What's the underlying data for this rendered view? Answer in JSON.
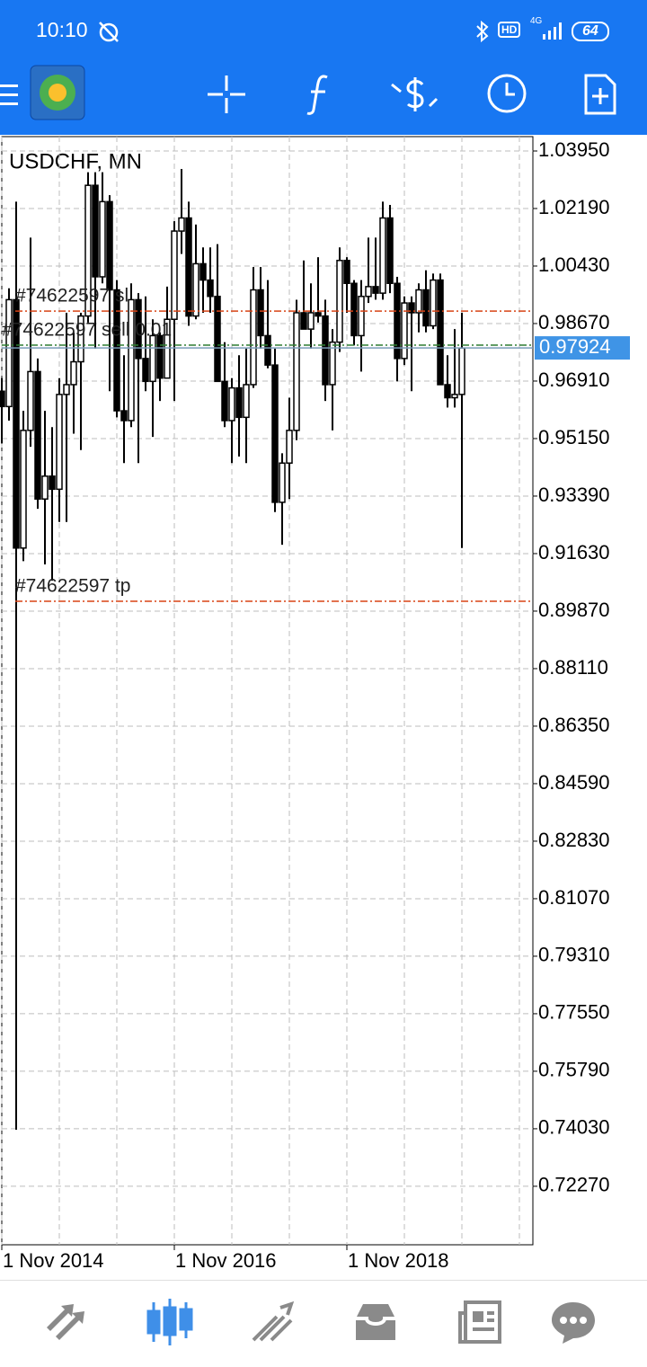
{
  "status_bar": {
    "time": "10:10",
    "hd": "HD",
    "network": "4G",
    "battery": "64"
  },
  "chart_data": {
    "type": "candlestick",
    "title": "USDCHF, MN",
    "categories": [
      "1 Nov 2014",
      null,
      null,
      null,
      null,
      null,
      null,
      null,
      null,
      null,
      null,
      null,
      null,
      null,
      null,
      null,
      null,
      null,
      null,
      null,
      null,
      null,
      null,
      null,
      "1 Nov 2016",
      null,
      null,
      null,
      null,
      null,
      null,
      null,
      null,
      null,
      null,
      null,
      null,
      null,
      null,
      null,
      null,
      null,
      null,
      null,
      null,
      null,
      null,
      null,
      "1 Nov 2018",
      null,
      null,
      null,
      null,
      null,
      null,
      null,
      null,
      null,
      null,
      null,
      null,
      null,
      null,
      null,
      null
    ],
    "open": [
      0.966,
      0.9613,
      0.994,
      0.918,
      0.954,
      0.972,
      0.933,
      0.94,
      0.936,
      0.965,
      0.968,
      0.975,
      0.989,
      1.029,
      1.001,
      1.024,
      0.997,
      0.96,
      0.957,
      0.994,
      0.976,
      0.969,
      0.983,
      0.97,
      0.988,
      1.015,
      1.019,
      0.989,
      1.005,
      1.0,
      0.995,
      0.969,
      0.957,
      0.967,
      0.958,
      0.968,
      0.997,
      0.983,
      0.974,
      0.932,
      0.944,
      0.954,
      0.99,
      0.985,
      0.99,
      0.989,
      0.968,
      0.981,
      1.006,
      0.999,
      0.983,
      0.995,
      0.998,
      0.996,
      1.019,
      0.999,
      0.976,
      0.993,
      0.99,
      0.997,
      0.986,
      1.0,
      0.968,
      0.964,
      0.965
    ],
    "high": [
      0.97,
      0.9975,
      1.024,
      0.96,
      1.013,
      0.976,
      0.96,
      0.955,
      0.97,
      0.99,
      0.984,
      0.99,
      1.033,
      1.033,
      1.033,
      1.026,
      1.0,
      0.977,
      0.999,
      0.996,
      0.995,
      0.988,
      0.984,
      0.998,
      1.018,
      1.034,
      1.024,
      1.017,
      1.01,
      1.01,
      1.011,
      0.981,
      0.97,
      0.977,
      0.979,
      1.004,
      1.004,
      1.0,
      0.979,
      0.947,
      0.964,
      0.994,
      1.006,
      0.999,
      1.007,
      0.994,
      0.985,
      1.01,
      1.007,
      1.0,
      1.0,
      1.013,
      1.013,
      1.024,
      1.023,
      1.001,
      0.995,
      0.995,
      0.999,
      1.003,
      1.002,
      1.002,
      0.977,
      0.985,
      0.99
    ],
    "low": [
      0.95,
      0.957,
      0.74,
      0.914,
      0.949,
      0.93,
      0.913,
      0.908,
      0.926,
      0.926,
      0.953,
      0.948,
      0.987,
      0.979,
      0.999,
      0.966,
      0.958,
      0.944,
      0.955,
      0.944,
      0.966,
      0.952,
      0.963,
      0.97,
      0.963,
      1.008,
      0.986,
      0.988,
      0.99,
      0.99,
      0.969,
      0.955,
      0.944,
      0.946,
      0.944,
      0.967,
      0.979,
      0.973,
      0.929,
      0.919,
      0.933,
      0.951,
      0.985,
      0.979,
      0.987,
      0.963,
      0.954,
      0.978,
      0.99,
      0.98,
      0.972,
      0.993,
      0.994,
      0.994,
      0.996,
      0.969,
      0.974,
      0.966,
      0.984,
      0.984,
      0.985,
      0.968,
      0.961,
      0.961,
      0.918
    ],
    "close": [
      0.9613,
      0.994,
      0.918,
      0.954,
      0.972,
      0.933,
      0.94,
      0.936,
      0.965,
      0.968,
      0.975,
      0.989,
      1.029,
      1.001,
      1.024,
      0.997,
      0.96,
      0.957,
      0.994,
      0.976,
      0.969,
      0.983,
      0.97,
      0.988,
      1.015,
      1.019,
      0.989,
      1.005,
      1.0,
      0.995,
      0.969,
      0.957,
      0.967,
      0.958,
      0.968,
      0.997,
      0.983,
      0.974,
      0.932,
      0.944,
      0.954,
      0.99,
      0.985,
      0.99,
      0.989,
      0.968,
      0.981,
      1.006,
      0.999,
      0.983,
      0.995,
      0.998,
      0.996,
      1.019,
      0.999,
      0.976,
      0.993,
      0.99,
      0.997,
      0.986,
      1.0,
      0.968,
      0.964,
      0.965,
      0.9792
    ],
    "color": "#000000",
    "ylim": [
      0.7048,
      1.0439
    ],
    "yticks": [
      {
        "value": 1.0395,
        "label": "1.03950"
      },
      {
        "value": 1.0219,
        "label": "1.02190"
      },
      {
        "value": 1.0043,
        "label": "1.00430"
      },
      {
        "value": 0.9867,
        "label": "0.98670"
      },
      {
        "value": 0.9691,
        "label": "0.96910"
      },
      {
        "value": 0.9515,
        "label": "0.95150"
      },
      {
        "value": 0.9339,
        "label": "0.93390"
      },
      {
        "value": 0.9163,
        "label": "0.91630"
      },
      {
        "value": 0.8987,
        "label": "0.89870"
      },
      {
        "value": 0.8811,
        "label": "0.88110"
      },
      {
        "value": 0.8635,
        "label": "0.86350"
      },
      {
        "value": 0.8459,
        "label": "0.84590"
      },
      {
        "value": 0.8283,
        "label": "0.82830"
      },
      {
        "value": 0.8107,
        "label": "0.81070"
      },
      {
        "value": 0.7931,
        "label": "0.79310"
      },
      {
        "value": 0.7755,
        "label": "0.77550"
      },
      {
        "value": 0.7579,
        "label": "0.75790"
      },
      {
        "value": 0.7403,
        "label": "0.74030"
      },
      {
        "value": 0.7227,
        "label": "0.72270"
      }
    ],
    "grid": true,
    "levels": [
      {
        "name": "#74622597 sl",
        "value": 0.9905,
        "color": "#d84315"
      },
      {
        "name": "#74622597 sell 0.01",
        "value": 0.9801,
        "color": "#2e7d32"
      },
      {
        "name": "#74622597 tp",
        "value": 0.9017,
        "color": "#d84315"
      }
    ],
    "bid": {
      "value": 0.97924,
      "color": "#3f94e6"
    }
  }
}
